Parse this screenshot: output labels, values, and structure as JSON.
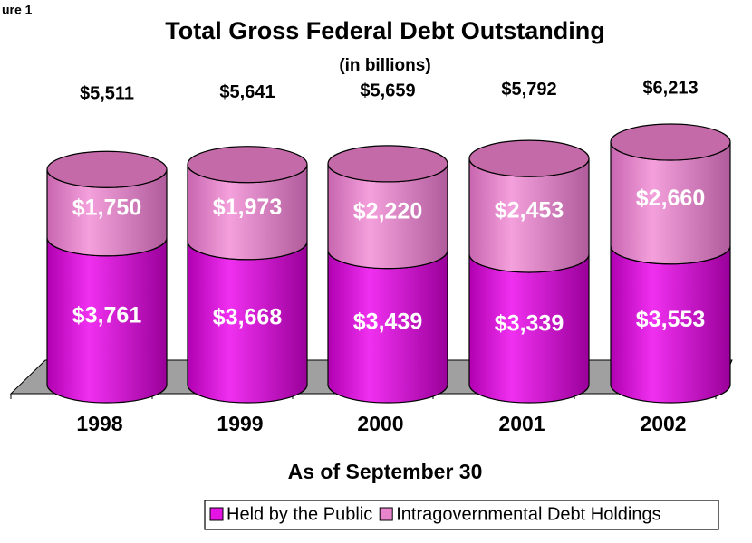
{
  "chart_data": {
    "type": "stacked_cylinder",
    "figure_label": "ure 1",
    "title": "Total Gross Federal Debt Outstanding",
    "subtitle": "(in billions)",
    "x_label": "As of September 30",
    "categories": [
      "1998",
      "1999",
      "2000",
      "2001",
      "2002"
    ],
    "series": [
      {
        "name": "Held by the Public",
        "color": "#e414e4",
        "values": [
          3761,
          3668,
          3439,
          3339,
          3553
        ],
        "value_labels": [
          "$3,761",
          "$3,668",
          "$3,439",
          "$3,339",
          "$3,553"
        ]
      },
      {
        "name": "Intragovernmental Debt Holdings",
        "color": "#e884cc",
        "values": [
          1750,
          1973,
          2220,
          2453,
          2660
        ],
        "value_labels": [
          "$1,750",
          "$1,973",
          "$2,220",
          "$2,453",
          "$2,660"
        ]
      }
    ],
    "totals": {
      "values": [
        5511,
        5641,
        5659,
        5792,
        6213
      ],
      "value_labels": [
        "$5,511",
        "$5,641",
        "$5,659",
        "$5,792",
        "$6,213"
      ]
    },
    "legend": "bottom"
  }
}
